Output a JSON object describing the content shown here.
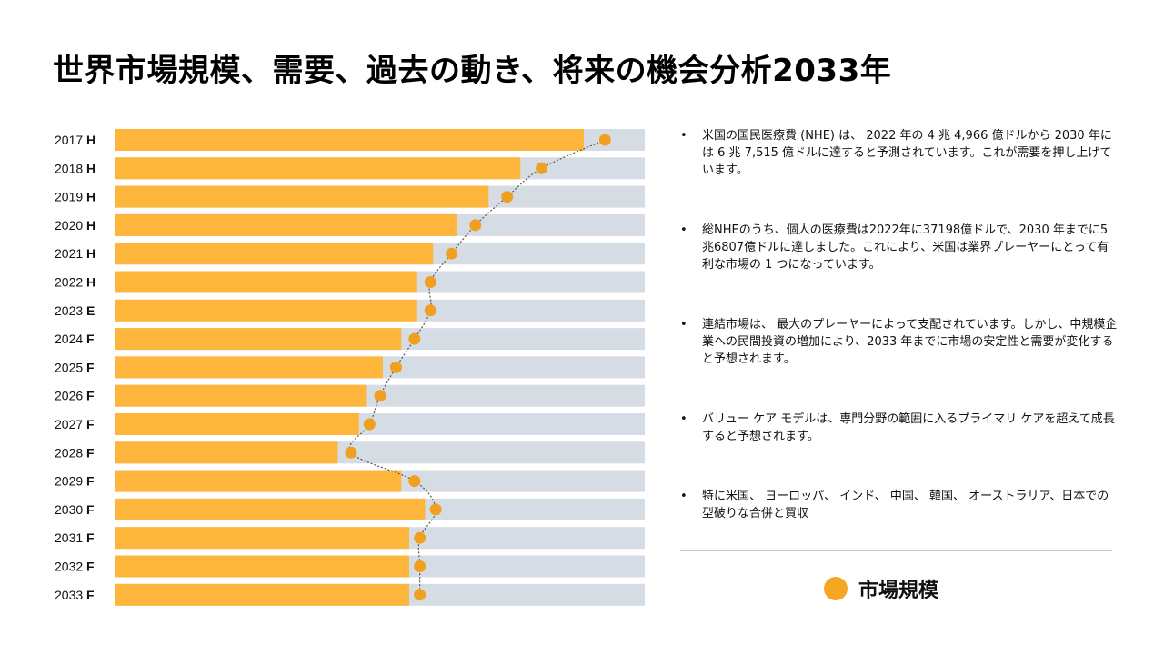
{
  "title": "世界市場規模、需要、過去の動き、将来の機会分析2033年",
  "colors": {
    "bar": "#FDB53B",
    "track": "#D6DCE4",
    "marker": "#F0A020",
    "line": "#555555"
  },
  "chart_data": {
    "type": "bar",
    "orientation": "horizontal",
    "categories": [
      {
        "year": "2017",
        "tag": "H"
      },
      {
        "year": "2018",
        "tag": "H"
      },
      {
        "year": "2019",
        "tag": "H"
      },
      {
        "year": "2020",
        "tag": "H"
      },
      {
        "year": "2021",
        "tag": "H"
      },
      {
        "year": "2022",
        "tag": "H"
      },
      {
        "year": "2023",
        "tag": "E"
      },
      {
        "year": "2024",
        "tag": "F"
      },
      {
        "year": "2025",
        "tag": "F"
      },
      {
        "year": "2026",
        "tag": "F"
      },
      {
        "year": "2027",
        "tag": "F"
      },
      {
        "year": "2028",
        "tag": "F"
      },
      {
        "year": "2029",
        "tag": "F"
      },
      {
        "year": "2030",
        "tag": "F"
      },
      {
        "year": "2031",
        "tag": "F"
      },
      {
        "year": "2032",
        "tag": "F"
      },
      {
        "year": "2033",
        "tag": "F"
      }
    ],
    "bar_values": [
      88.5,
      76.5,
      70.5,
      64.5,
      60.0,
      57.0,
      57.0,
      54.0,
      50.5,
      47.5,
      46.0,
      42.0,
      54.0,
      58.5,
      55.5,
      55.5,
      55.5
    ],
    "marker_values": [
      92.5,
      80.5,
      74.0,
      68.0,
      63.5,
      59.5,
      59.5,
      56.5,
      53.0,
      50.0,
      48.0,
      44.5,
      56.5,
      60.5,
      57.5,
      57.5,
      57.5
    ],
    "xlim": [
      0,
      100
    ],
    "series_name": "市場規模",
    "grid": false
  },
  "bullets": [
    "米国の国民医療費 (NHE) は、 2022 年の 4 兆 4,966 億ドルから 2030 年には 6 兆 7,515 億ドルに達すると予測されています。これが需要を押し上げています。",
    "総NHEのうち、個人の医療費は2022年に37198億ドルで、2030 年までに5兆6807億ドルに達しました。これにより、米国は業界プレーヤーにとって有利な市場の 1 つになっています。",
    "連結市場は、 最大のプレーヤーによって支配されています。しかし、中規模企業への民間投資の増加により、2033 年までに市場の安定性と需要が変化すると予想されます。",
    "バリュー ケア モデルは、専門分野の範囲に入るプライマリ ケアを超えて成長すると予想されます。",
    "特に米国、 ヨーロッパ、 インド、 中国、 韓国、 オーストラリア、日本での型破りな合併と買収"
  ],
  "legend": {
    "label": "市場規模"
  }
}
